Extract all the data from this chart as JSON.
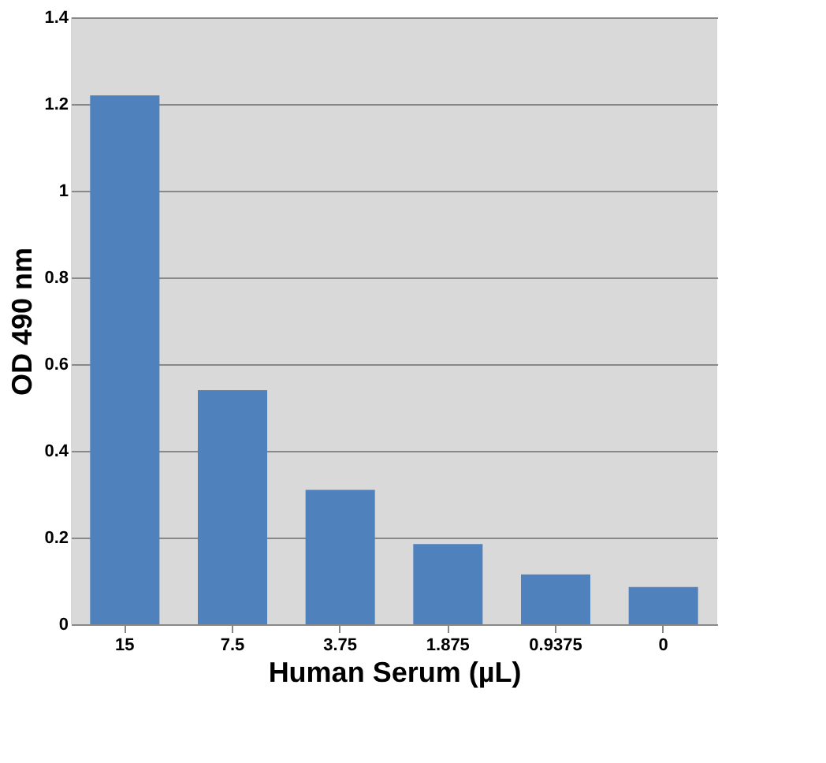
{
  "chart_data": {
    "type": "bar",
    "xlabel": "Human Serum (µL)",
    "ylabel": "OD 490 nm",
    "categories": [
      "15",
      "7.5",
      "3.75",
      "1.875",
      "0.9375",
      "0"
    ],
    "values": [
      1.22,
      0.54,
      0.31,
      0.185,
      0.115,
      0.086
    ],
    "color": "#4f81bd",
    "ylim": [
      0,
      1.4
    ],
    "yticks": [
      0,
      0.2,
      0.4,
      0.6,
      0.8,
      1,
      1.2,
      1.4
    ],
    "grid": "y"
  }
}
